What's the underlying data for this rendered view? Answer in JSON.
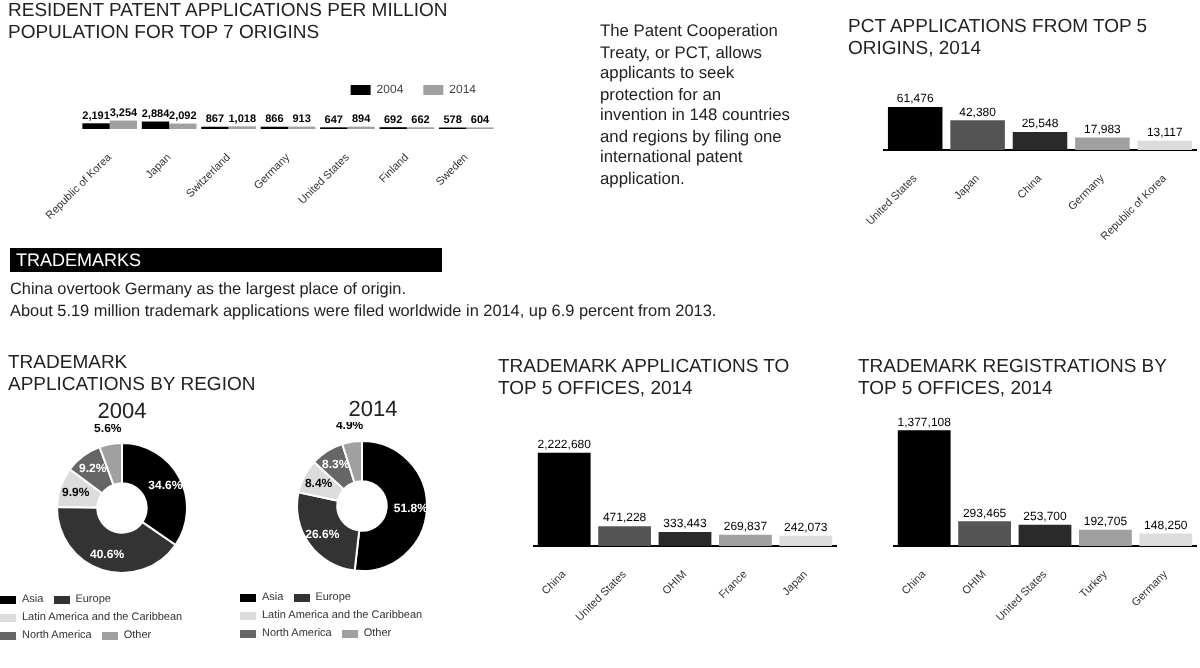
{
  "chart_data": [
    {
      "type": "bar",
      "title": "RESIDENT PATENT APPLICATIONS PER  MILLION POPULATION FOR TOP 7 ORIGINS",
      "categories": [
        "Republic of Korea",
        "Japan",
        "Switzerland",
        "Germany",
        "United States",
        "Finland",
        "Sweden"
      ],
      "legend": "top right",
      "series": [
        {
          "name": "2004",
          "color": "#000000",
          "values": [
            2191,
            2884,
            867,
            866,
            647,
            692,
            578
          ],
          "value_labels": [
            "2,191",
            "2,884",
            "867",
            "866",
            "647",
            "692",
            "578"
          ]
        },
        {
          "name": "2014",
          "color": "#a0a0a0",
          "values": [
            3254,
            2092,
            1018,
            913,
            894,
            662,
            604
          ],
          "value_labels": [
            "3,254",
            "2,092",
            "1,018",
            "913",
            "894",
            "662",
            "604"
          ]
        }
      ]
    },
    {
      "type": "other",
      "annotations": [
        "The Patent Cooperation Treaty, or PCT, allows applicants to seek protection for an invention in 148 countries and regions by filing one international patent application."
      ]
    },
    {
      "type": "bar",
      "title": "PCT APPLICATIONS FROM TOP 5 ORIGINS, 2014",
      "categories": [
        "United States",
        "Japan",
        "China",
        "Germany",
        "Republic of Korea"
      ],
      "values": [
        61476,
        42380,
        25548,
        17983,
        13117
      ],
      "colors": [
        "#000000",
        "#555555",
        "#2a2a2a",
        "#a0a0a0",
        "#dcdcdc"
      ],
      "value_labels": [
        "61,476",
        "42,380",
        "25,548",
        "17,983",
        "13,117"
      ]
    },
    {
      "type": "other",
      "title": "TRADEMARKS",
      "annotations": [
        "China overtook Germany as the largest place of origin.",
        "About 5.19 million trademark applications were filed worldwide in 2014, up 6.9 percent from 2013."
      ]
    },
    {
      "type": "donut",
      "title": "TRADEMARK APPLICATIONS BY REGION",
      "subtitle": "2004",
      "legend": "bottom",
      "categories": [
        "Asia",
        "Europe",
        "Latin America and the Caribbean",
        "North America",
        "Other"
      ],
      "values": [
        34.6,
        40.6,
        9.9,
        9.2,
        5.6
      ],
      "colors": [
        "#000000",
        "#333333",
        "#dcdcdc",
        "#666666",
        "#a0a0a0"
      ],
      "value_labels": [
        "34.6%",
        "40.6%",
        "9.9%",
        "9.2%",
        "5.6%"
      ]
    },
    {
      "type": "donut",
      "title": "2014",
      "legend": "bottom",
      "categories": [
        "Asia",
        "Europe",
        "Latin America and the Caribbean",
        "North America",
        "Other"
      ],
      "values": [
        51.8,
        26.6,
        8.4,
        8.3,
        4.9
      ],
      "colors": [
        "#000000",
        "#333333",
        "#dcdcdc",
        "#666666",
        "#a0a0a0"
      ],
      "value_labels": [
        "51.8%",
        "26.6%",
        "8.4%",
        "8.3%",
        "4.9%"
      ]
    },
    {
      "type": "bar",
      "title": "TRADEMARK APPLICATIONS TO TOP 5 OFFICES, 2014",
      "categories": [
        "China",
        "United States",
        "OHIM",
        "France",
        "Japan"
      ],
      "values": [
        2222680,
        471228,
        333443,
        269837,
        242073
      ],
      "colors": [
        "#000000",
        "#555555",
        "#2a2a2a",
        "#a0a0a0",
        "#dcdcdc"
      ],
      "value_labels": [
        "2,222,680",
        "471,228",
        "333,443",
        "269,837",
        "242,073"
      ]
    },
    {
      "type": "bar",
      "title": "TRADEMARK REGISTRATIONS BY TOP 5 OFFICES, 2014",
      "categories": [
        "China",
        "OHIM",
        "United States",
        "Turkey",
        "Germany"
      ],
      "values": [
        1377108,
        293465,
        253700,
        192705,
        148250
      ],
      "colors": [
        "#000000",
        "#555555",
        "#2a2a2a",
        "#a0a0a0",
        "#dcdcdc"
      ],
      "value_labels": [
        "1,377,108",
        "293,465",
        "253,700",
        "192,705",
        "148,250"
      ]
    }
  ]
}
